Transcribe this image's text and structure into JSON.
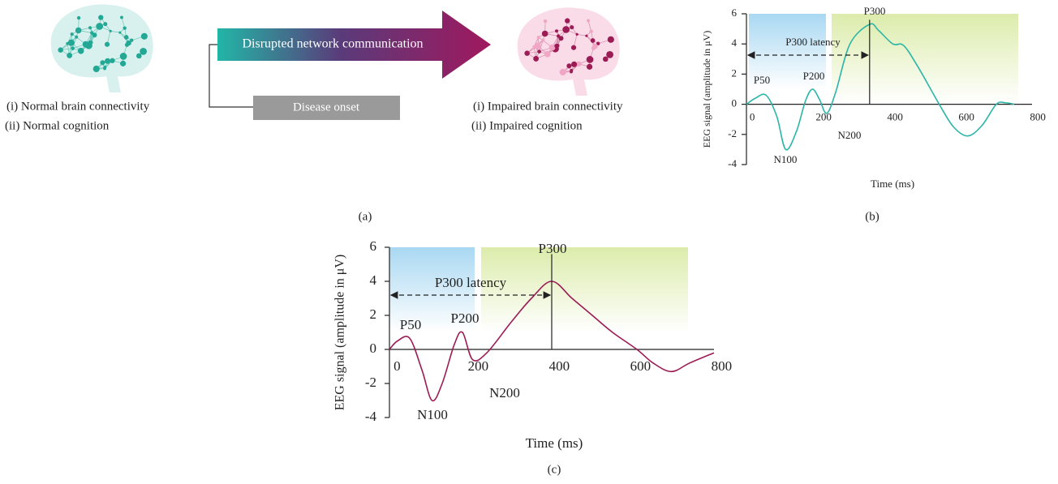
{
  "diagram": {
    "normal": [
      "(i) Normal brain connectivity",
      "(ii) Normal cognition"
    ],
    "arrow_label": "Disrupted network communication",
    "onset": "Disease onset",
    "impaired": [
      "(i) Impaired brain connectivity",
      "(ii) Impaired cognition"
    ],
    "caption": "(a)"
  },
  "chart_data": [
    {
      "type": "line",
      "caption": "(b)",
      "xlabel": "Time (ms)",
      "ylabel": "EEG signal (amplitude in μV)",
      "x": [
        0,
        25,
        55,
        85,
        110,
        140,
        165,
        185,
        205,
        225,
        250,
        290,
        345,
        370,
        410,
        440,
        480,
        540,
        580,
        620,
        660,
        700,
        725,
        750
      ],
      "values": [
        0,
        0.4,
        0.6,
        -0.8,
        -3,
        -1.8,
        0.2,
        1,
        0.3,
        -0.6,
        0.8,
        4,
        5.3,
        4.9,
        4,
        3.9,
        2.5,
        0,
        -1.5,
        -2.1,
        -1.4,
        0,
        0.1,
        0
      ],
      "color": "#2bb5a8",
      "xlim": [
        0,
        800
      ],
      "xticks": [
        0,
        200,
        400,
        600,
        800
      ],
      "ylim": [
        -4,
        6
      ],
      "yticks": [
        -4,
        -2,
        0,
        2,
        4,
        6
      ],
      "annotations": [
        "P50",
        "N100",
        "P200",
        "N200",
        "P300",
        "P300 latency"
      ]
    },
    {
      "type": "line",
      "caption": "(c)",
      "xlabel": "Time (ms)",
      "ylabel": "EEG signal (amplitude in μV)",
      "x": [
        0,
        20,
        50,
        80,
        105,
        130,
        160,
        180,
        205,
        240,
        300,
        350,
        400,
        450,
        500,
        550,
        610,
        650,
        695,
        740,
        800
      ],
      "values": [
        0,
        0.5,
        0.65,
        -1.2,
        -3,
        -2,
        0.3,
        1,
        -0.6,
        -0.2,
        1.6,
        3,
        4,
        3,
        2,
        1,
        0,
        -0.8,
        -1.3,
        -0.8,
        -0.2
      ],
      "color": "#9b1b55",
      "xlim": [
        0,
        800
      ],
      "xticks": [
        0,
        200,
        400,
        600,
        800
      ],
      "ylim": [
        -4,
        6
      ],
      "yticks": [
        -4,
        -2,
        0,
        2,
        4,
        6
      ],
      "annotations": [
        "P50",
        "N100",
        "P200",
        "N200",
        "P300",
        "P300 latency"
      ]
    }
  ]
}
